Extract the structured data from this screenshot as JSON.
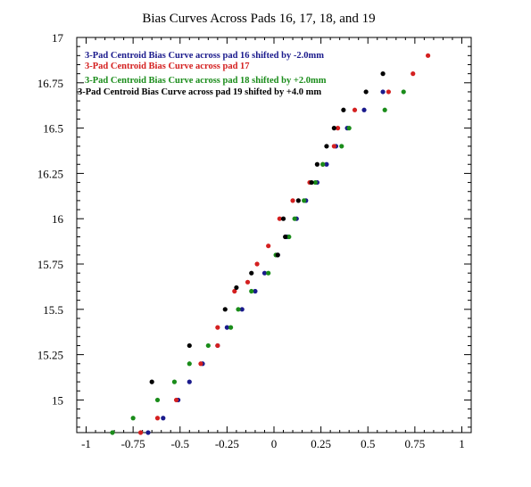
{
  "chart_data": {
    "type": "scatter",
    "title": "Bias Curves Across Pads 16, 17, 18, and 19",
    "xlabel": "",
    "ylabel": "",
    "xlim": [
      -1.05,
      1.05
    ],
    "ylim": [
      14.82,
      17.0
    ],
    "x_ticks": [
      -1,
      -0.75,
      -0.5,
      -0.25,
      0,
      0.25,
      0.5,
      0.75,
      1
    ],
    "x_tick_labels": [
      "-1",
      "-0.75",
      "-0.5",
      "-0.25",
      "0",
      "0.25",
      "0.5",
      "0.75",
      "1"
    ],
    "y_ticks": [
      15,
      15.25,
      15.5,
      15.75,
      16,
      16.25,
      16.5,
      16.75,
      17
    ],
    "y_tick_labels": [
      "15",
      "15.25",
      "15.5",
      "15.75",
      "16",
      "16.25",
      "16.5",
      "16.75",
      "17"
    ],
    "grid": false,
    "legend_position": "top-left",
    "series": [
      {
        "name": "3-Pad Centroid Bias Curve across pad 16 shifted by -2.0mm",
        "color": "#1a1a8c",
        "points": [
          [
            -0.67,
            14.82
          ],
          [
            -0.59,
            14.9
          ],
          [
            -0.51,
            15.0
          ],
          [
            -0.45,
            15.1
          ],
          [
            -0.38,
            15.2
          ],
          [
            -0.3,
            15.3
          ],
          [
            -0.25,
            15.4
          ],
          [
            -0.17,
            15.5
          ],
          [
            -0.1,
            15.6
          ],
          [
            -0.05,
            15.7
          ],
          [
            0.02,
            15.8
          ],
          [
            0.07,
            15.9
          ],
          [
            0.12,
            16.0
          ],
          [
            0.17,
            16.1
          ],
          [
            0.23,
            16.2
          ],
          [
            0.28,
            16.3
          ],
          [
            0.33,
            16.4
          ],
          [
            0.39,
            16.5
          ],
          [
            0.48,
            16.6
          ],
          [
            0.58,
            16.7
          ]
        ]
      },
      {
        "name": "3-Pad Centroid Bias Curve across pad 17",
        "color": "#d42020",
        "points": [
          [
            -0.71,
            14.82
          ],
          [
            -0.62,
            14.9
          ],
          [
            -0.52,
            15.0
          ],
          [
            -0.39,
            15.2
          ],
          [
            -0.3,
            15.3
          ],
          [
            -0.3,
            15.4
          ],
          [
            -0.21,
            15.6
          ],
          [
            -0.14,
            15.65
          ],
          [
            -0.09,
            15.75
          ],
          [
            -0.03,
            15.85
          ],
          [
            0.03,
            16.0
          ],
          [
            0.1,
            16.1
          ],
          [
            0.19,
            16.2
          ],
          [
            0.26,
            16.3
          ],
          [
            0.32,
            16.4
          ],
          [
            0.34,
            16.5
          ],
          [
            0.43,
            16.6
          ],
          [
            0.61,
            16.7
          ],
          [
            0.74,
            16.8
          ],
          [
            0.82,
            16.9
          ]
        ]
      },
      {
        "name": "3-Pad Centroid Bias Curve across pad 18 shifted by +2.0mm",
        "color": "#1a8c1a",
        "points": [
          [
            -0.86,
            14.82
          ],
          [
            -0.75,
            14.9
          ],
          [
            -0.62,
            15.0
          ],
          [
            -0.53,
            15.1
          ],
          [
            -0.45,
            15.2
          ],
          [
            -0.35,
            15.3
          ],
          [
            -0.23,
            15.4
          ],
          [
            -0.19,
            15.5
          ],
          [
            -0.12,
            15.6
          ],
          [
            -0.03,
            15.7
          ],
          [
            0.01,
            15.8
          ],
          [
            0.08,
            15.9
          ],
          [
            0.11,
            16.0
          ],
          [
            0.16,
            16.1
          ],
          [
            0.22,
            16.2
          ],
          [
            0.26,
            16.3
          ],
          [
            0.36,
            16.4
          ],
          [
            0.4,
            16.5
          ],
          [
            0.59,
            16.6
          ],
          [
            0.69,
            16.7
          ]
        ]
      },
      {
        "name": "3-Pad Centroid Bias Curve across pad 19 shifted by +4.0 mm",
        "color": "#000000",
        "points": [
          [
            -0.65,
            15.1
          ],
          [
            -0.45,
            15.3
          ],
          [
            -0.26,
            15.5
          ],
          [
            -0.2,
            15.62
          ],
          [
            -0.12,
            15.7
          ],
          [
            0.02,
            15.8
          ],
          [
            0.06,
            15.9
          ],
          [
            0.05,
            16.0
          ],
          [
            0.13,
            16.1
          ],
          [
            0.2,
            16.2
          ],
          [
            0.23,
            16.3
          ],
          [
            0.28,
            16.4
          ],
          [
            0.32,
            16.5
          ],
          [
            0.37,
            16.6
          ],
          [
            0.49,
            16.7
          ],
          [
            0.58,
            16.8
          ]
        ]
      }
    ]
  }
}
